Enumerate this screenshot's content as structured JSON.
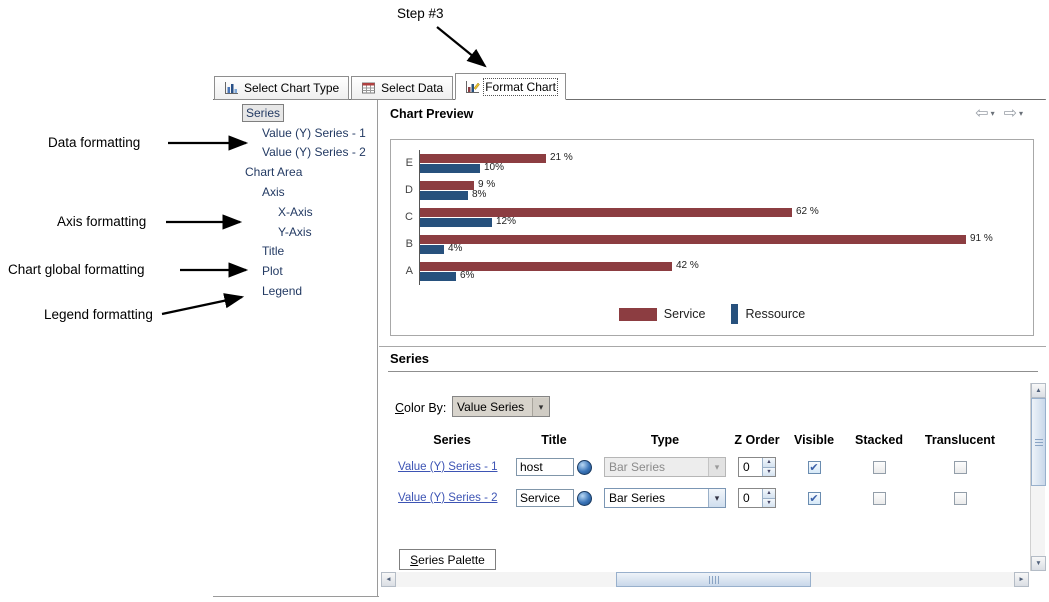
{
  "annotations": {
    "step": "Step #3",
    "data_formatting": "Data formatting",
    "axis_formatting": "Axis formatting",
    "chart_global_formatting": "Chart global formatting",
    "legend_formatting": "Legend formatting"
  },
  "tabs": [
    {
      "label": "Select Chart Type",
      "selected": false
    },
    {
      "label": "Select Data",
      "selected": false
    },
    {
      "label": "Format Chart",
      "selected": true
    }
  ],
  "tree": {
    "items": [
      {
        "label": "Series",
        "indent": 0,
        "selected": true
      },
      {
        "label": "Value (Y) Series - 1",
        "indent": 1,
        "selected": false
      },
      {
        "label": "Value (Y) Series - 2",
        "indent": 1,
        "selected": false
      },
      {
        "label": "Chart Area",
        "indent": 0,
        "selected": false
      },
      {
        "label": "Axis",
        "indent": 1,
        "selected": false
      },
      {
        "label": "X-Axis",
        "indent": 2,
        "selected": false
      },
      {
        "label": "Y-Axis",
        "indent": 2,
        "selected": false
      },
      {
        "label": "Title",
        "indent": 1,
        "selected": false
      },
      {
        "label": "Plot",
        "indent": 1,
        "selected": false
      },
      {
        "label": "Legend",
        "indent": 1,
        "selected": false
      }
    ]
  },
  "preview": {
    "title": "Chart Preview"
  },
  "chart_data": {
    "type": "bar",
    "orientation": "horizontal",
    "categories": [
      "E",
      "D",
      "C",
      "B",
      "A"
    ],
    "series": [
      {
        "name": "Service",
        "color": "#8c3d41",
        "values": [
          21,
          9,
          62,
          91,
          42
        ],
        "labels": [
          "21 %",
          "9 %",
          "62 %",
          "91 %",
          "42 %"
        ]
      },
      {
        "name": "Ressource",
        "color": "#27517d",
        "values": [
          10,
          8,
          12,
          4,
          6
        ],
        "labels": [
          "10%",
          "8%",
          "12%",
          "4%",
          "6%"
        ]
      }
    ],
    "xlim": [
      0,
      100
    ],
    "legend_position": "bottom",
    "grid": false
  },
  "series_panel": {
    "title": "Series",
    "color_by_label": "Color By:",
    "color_by_value": "Value Series",
    "columns": [
      "Series",
      "Title",
      "Type",
      "Z Order",
      "Visible",
      "Stacked",
      "Translucent"
    ],
    "rows": [
      {
        "series": "Value (Y) Series - 1",
        "title": "host",
        "type": "Bar Series",
        "type_enabled": false,
        "z_order": "0",
        "visible": true,
        "stacked": false,
        "translucent": false
      },
      {
        "series": "Value (Y) Series - 2",
        "title": "Service",
        "type": "Bar Series",
        "type_enabled": true,
        "z_order": "0",
        "visible": true,
        "stacked": false,
        "translucent": false
      }
    ],
    "palette_tab": "Series Palette"
  },
  "icons": {
    "back": "⇦",
    "forward": "⇨",
    "caret": "▾",
    "up": "▲",
    "down": "▼",
    "left": "◄",
    "right": "►",
    "check": "✔"
  }
}
